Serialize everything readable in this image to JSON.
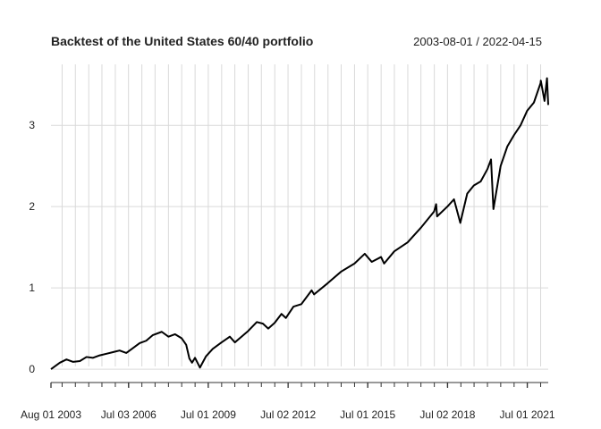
{
  "chart_data": {
    "type": "line",
    "title": "Backtest of the United States 60/40 portfolio",
    "date_range": "2003-08-01 / 2022-04-15",
    "x_start": "2003-08-01",
    "x_end": "2022-04-15",
    "ylim": [
      -0.12,
      3.75
    ],
    "yticks": [
      0,
      1,
      2,
      3
    ],
    "grid": true,
    "line_color": "#000000",
    "x_tick_labels": [
      {
        "date": "2003-08-01",
        "label": "Aug 01 2003"
      },
      {
        "date": "2006-07-03",
        "label": "Jul 03 2006"
      },
      {
        "date": "2009-07-01",
        "label": "Jul 01 2009"
      },
      {
        "date": "2012-07-02",
        "label": "Jul 02 2012"
      },
      {
        "date": "2015-07-01",
        "label": "Jul 01 2015"
      },
      {
        "date": "2018-07-02",
        "label": "Jul 02 2018"
      },
      {
        "date": "2021-07-01",
        "label": "Jul 01 2021"
      }
    ],
    "series": [
      {
        "x": [
          "2003-08-01",
          "2003-12-01",
          "2004-03-01",
          "2004-06-01",
          "2004-09-01",
          "2004-12-01",
          "2005-03-01",
          "2005-06-01",
          "2005-09-01",
          "2005-12-01",
          "2006-03-01",
          "2006-06-01",
          "2006-09-01",
          "2006-12-01",
          "2007-03-01",
          "2007-06-01",
          "2007-10-01",
          "2008-01-01",
          "2008-04-01",
          "2008-07-01",
          "2008-09-01",
          "2008-10-15",
          "2008-11-20",
          "2008-12-31",
          "2009-03-09",
          "2009-06-01",
          "2009-09-01",
          "2009-12-31",
          "2010-04-23",
          "2010-07-02",
          "2010-12-31",
          "2011-04-29",
          "2011-07-22",
          "2011-10-03",
          "2011-12-30",
          "2012-04-02",
          "2012-06-01",
          "2012-09-14",
          "2012-12-31",
          "2013-05-21",
          "2013-06-24",
          "2013-12-31",
          "2014-06-30",
          "2014-12-31",
          "2015-05-21",
          "2015-08-25",
          "2015-12-31",
          "2016-02-11",
          "2016-06-30",
          "2016-12-30",
          "2017-06-30",
          "2017-12-29",
          "2018-01-26",
          "2018-02-08",
          "2018-06-29",
          "2018-09-28",
          "2018-12-24",
          "2019-03-29",
          "2019-06-28",
          "2019-09-30",
          "2019-12-31",
          "2020-02-19",
          "2020-03-23",
          "2020-06-30",
          "2020-09-30",
          "2020-12-31",
          "2021-03-31",
          "2021-06-30",
          "2021-09-30",
          "2021-12-31",
          "2022-01-03",
          "2022-02-23",
          "2022-03-29",
          "2022-04-15"
        ],
        "y": [
          0.0,
          0.08,
          0.12,
          0.09,
          0.1,
          0.15,
          0.14,
          0.17,
          0.19,
          0.21,
          0.23,
          0.2,
          0.26,
          0.32,
          0.35,
          0.42,
          0.46,
          0.4,
          0.43,
          0.38,
          0.3,
          0.13,
          0.08,
          0.14,
          0.02,
          0.16,
          0.25,
          0.33,
          0.4,
          0.33,
          0.47,
          0.58,
          0.56,
          0.5,
          0.57,
          0.68,
          0.63,
          0.77,
          0.8,
          0.97,
          0.92,
          1.06,
          1.2,
          1.3,
          1.42,
          1.32,
          1.38,
          1.3,
          1.45,
          1.56,
          1.74,
          1.94,
          2.03,
          1.88,
          2.0,
          2.09,
          1.8,
          2.16,
          2.26,
          2.31,
          2.46,
          2.58,
          1.97,
          2.5,
          2.74,
          2.88,
          3.0,
          3.18,
          3.28,
          3.52,
          3.55,
          3.3,
          3.58,
          3.25
        ]
      }
    ]
  }
}
